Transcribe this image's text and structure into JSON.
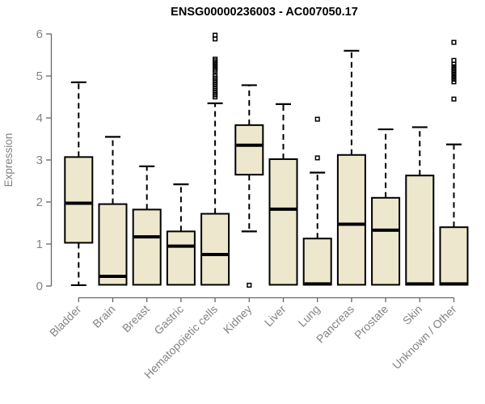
{
  "chart_data": {
    "type": "boxplot",
    "title": "ENSG00000236003 - AC007050.17",
    "ylabel": "Expression",
    "ylim": [
      0,
      6
    ],
    "yticks": [
      0,
      1,
      2,
      3,
      4,
      5,
      6
    ],
    "grid": false,
    "colors": {
      "box_fill": "#EDE8CD",
      "box_border": "#000000",
      "median": "#000000",
      "whisker": "#000000",
      "outlier": "#000000",
      "axis_line": "#666666",
      "tick_label": "#838383",
      "title": "#000000",
      "background": "#ffffff"
    },
    "categories": [
      "Bladder",
      "Brain",
      "Breast",
      "Gastric",
      "Hematopoietic cells",
      "Kidney",
      "Liver",
      "Lung",
      "Pancreas",
      "Prostate",
      "Skin",
      "Unknown / Other"
    ],
    "series": [
      {
        "label": "Bladder",
        "whisker_low": 0.02,
        "q1": 1.03,
        "median": 1.97,
        "q3": 3.07,
        "whisker_high": 4.85,
        "outliers": []
      },
      {
        "label": "Brain",
        "whisker_low": 0.03,
        "q1": 0.03,
        "median": 0.23,
        "q3": 1.95,
        "whisker_high": 3.55,
        "outliers": []
      },
      {
        "label": "Breast",
        "whisker_low": 0.03,
        "q1": 0.03,
        "median": 1.17,
        "q3": 1.82,
        "whisker_high": 2.85,
        "outliers": []
      },
      {
        "label": "Gastric",
        "whisker_low": 0.03,
        "q1": 0.03,
        "median": 0.95,
        "q3": 1.3,
        "whisker_high": 2.42,
        "outliers": []
      },
      {
        "label": "Hematopoietic cells",
        "whisker_low": 0.03,
        "q1": 0.03,
        "median": 0.75,
        "q3": 1.72,
        "whisker_high": 4.35,
        "outliers": [
          4.5,
          4.55,
          4.6,
          4.65,
          4.7,
          4.75,
          4.8,
          4.85,
          4.9,
          4.95,
          5.0,
          5.12,
          5.16,
          5.2,
          5.24,
          5.28,
          5.32,
          5.36,
          5.4,
          5.88,
          5.97
        ]
      },
      {
        "label": "Kidney",
        "whisker_low": 1.3,
        "q1": 2.65,
        "median": 3.35,
        "q3": 3.83,
        "whisker_high": 4.78,
        "outliers": [
          0.02
        ]
      },
      {
        "label": "Liver",
        "whisker_low": 0.03,
        "q1": 0.03,
        "median": 1.83,
        "q3": 3.02,
        "whisker_high": 4.33,
        "outliers": []
      },
      {
        "label": "Lung",
        "whisker_low": 0.03,
        "q1": 0.03,
        "median": 0.05,
        "q3": 1.13,
        "whisker_high": 2.7,
        "outliers": [
          3.05,
          3.97
        ]
      },
      {
        "label": "Pancreas",
        "whisker_low": 0.03,
        "q1": 0.03,
        "median": 1.47,
        "q3": 3.12,
        "whisker_high": 5.6,
        "outliers": []
      },
      {
        "label": "Prostate",
        "whisker_low": 0.03,
        "q1": 0.03,
        "median": 1.33,
        "q3": 2.1,
        "whisker_high": 3.73,
        "outliers": []
      },
      {
        "label": "Skin",
        "whisker_low": 0.03,
        "q1": 0.03,
        "median": 0.05,
        "q3": 2.63,
        "whisker_high": 3.78,
        "outliers": []
      },
      {
        "label": "Unknown / Other",
        "whisker_low": 0.03,
        "q1": 0.03,
        "median": 0.05,
        "q3": 1.4,
        "whisker_high": 3.37,
        "outliers": [
          4.45,
          4.86,
          4.92,
          4.98,
          5.04,
          5.1,
          5.16,
          5.22,
          5.28,
          5.37,
          5.8
        ]
      }
    ]
  }
}
